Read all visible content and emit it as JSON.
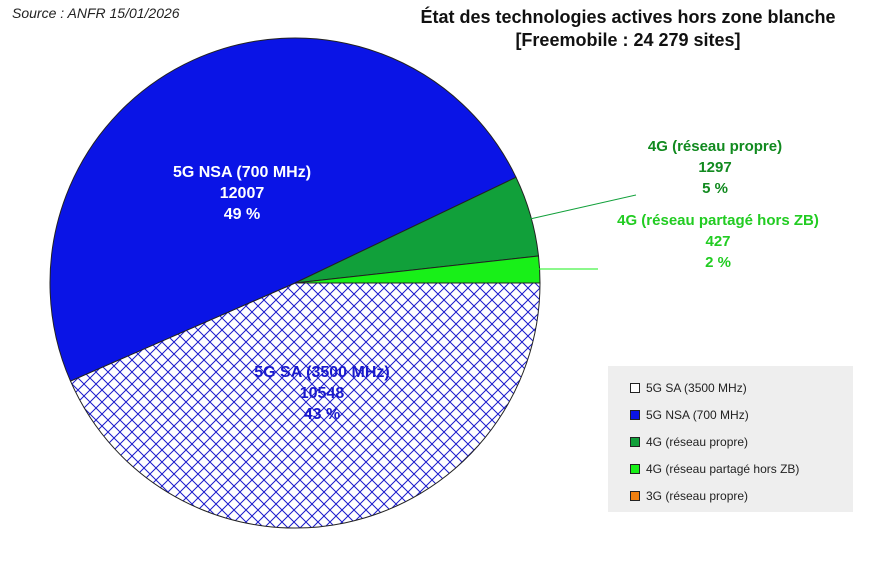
{
  "header": {
    "source": "Source : ANFR 15/01/2026",
    "title_line1": "État des technologies actives hors zone blanche",
    "title_line2": "[Freemobile : 24 279 sites]"
  },
  "chart_data": {
    "type": "pie",
    "title": "État des technologies actives hors zone blanche [Freemobile : 24 279 sites]",
    "total": 24279,
    "slices": [
      {
        "label": "5G SA (3500 MHz)",
        "value": 10548,
        "percent": "43 %",
        "color": "#ffffff",
        "pattern": "crosshatch-blue",
        "text_color": "#1a1acc"
      },
      {
        "label": "5G NSA (700 MHz)",
        "value": 12007,
        "percent": "49 %",
        "color": "#0a14e6",
        "text_color": "#ffffff"
      },
      {
        "label": "4G (réseau propre)",
        "value": 1297,
        "percent": "5 %",
        "color": "#11a03a",
        "text_color": "#118a1f"
      },
      {
        "label": "4G (réseau partagé hors ZB)",
        "value": 427,
        "percent": "2 %",
        "color": "#18f018",
        "text_color": "#22cc22"
      }
    ],
    "legend": {
      "placement": "bottom-right",
      "items": [
        {
          "label": "5G SA (3500 MHz)",
          "color": "#ffffff"
        },
        {
          "label": "5G NSA (700 MHz)",
          "color": "#0a14e6"
        },
        {
          "label": "4G (réseau propre)",
          "color": "#11a03a"
        },
        {
          "label": "4G (réseau partagé hors ZB)",
          "color": "#18f018"
        },
        {
          "label": "3G (réseau propre)",
          "color": "#f08010"
        }
      ]
    }
  }
}
